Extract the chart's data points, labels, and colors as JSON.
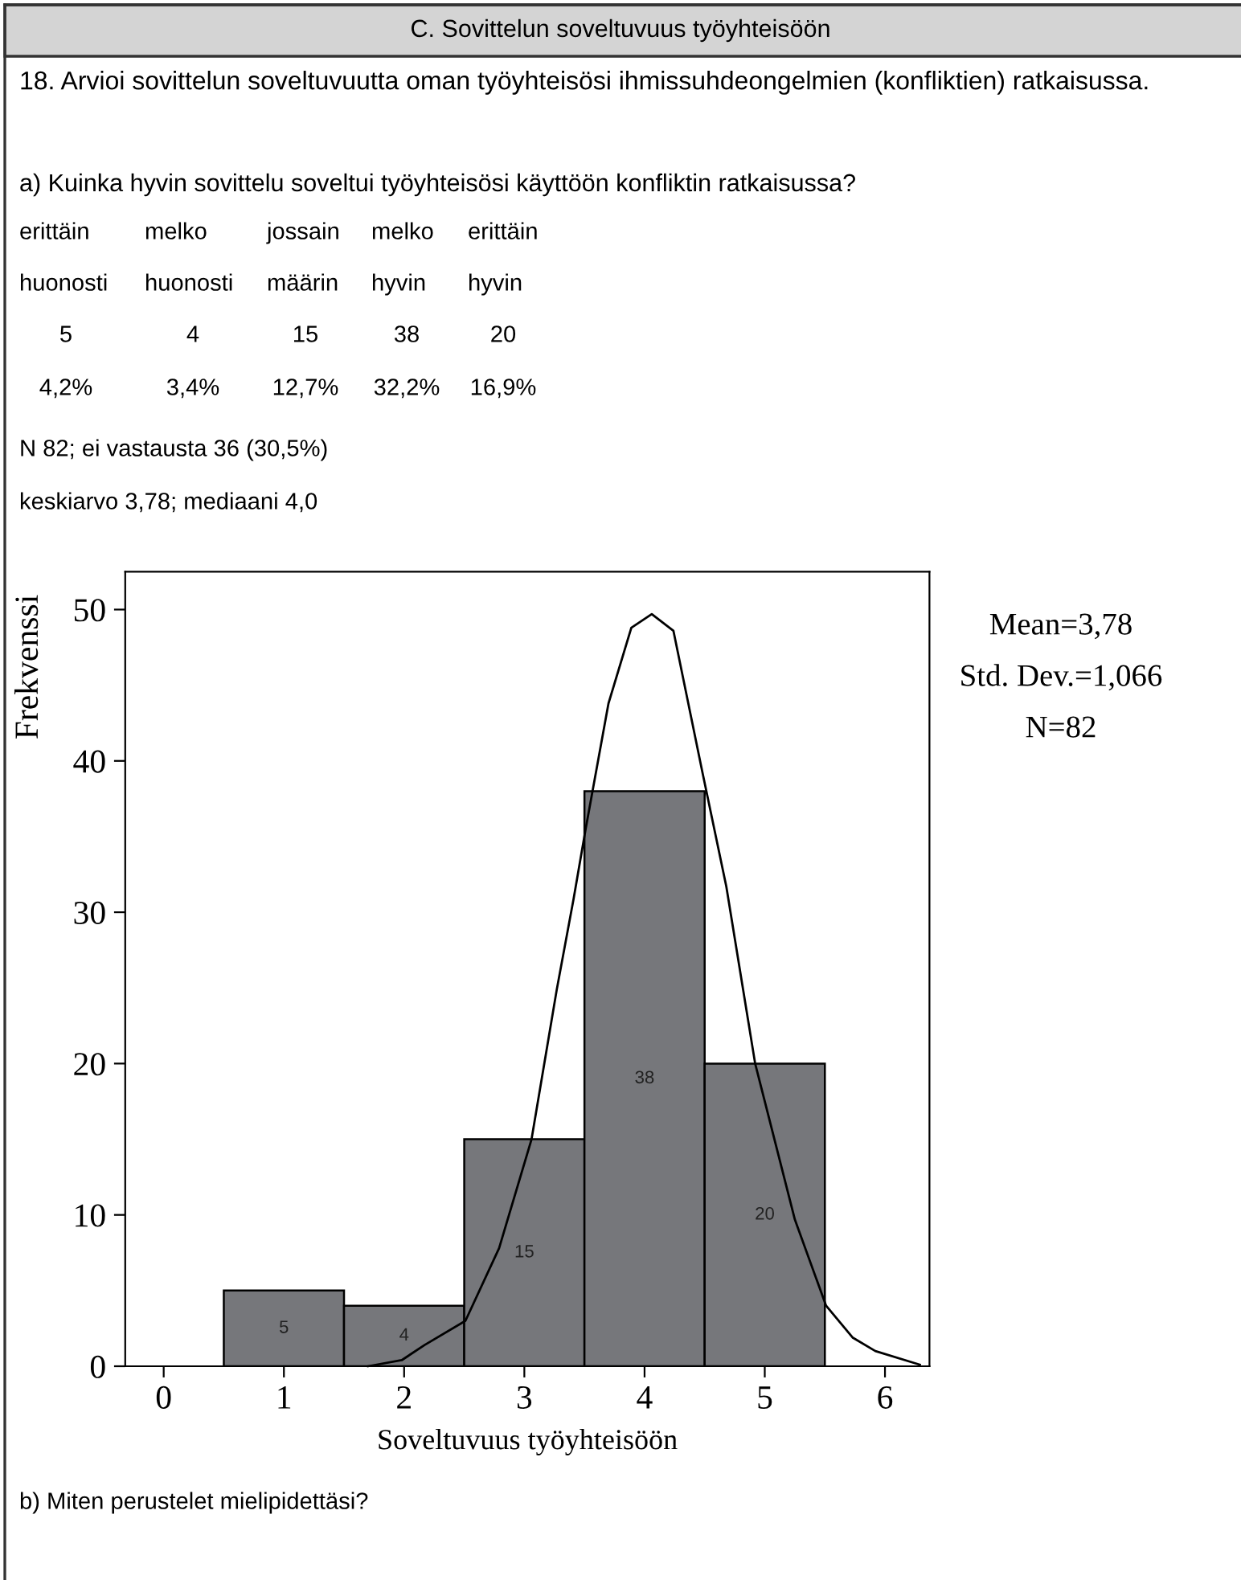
{
  "chart_data": {
    "type": "histogram",
    "title": "C. Sovittelun soveltuvuus työyhteisöön",
    "subtitle": "18. Arvioi sovittelun soveltuvuutta oman työyhteisösi ihmissuhdeongelmien (konfliktien) ratkaisussa.",
    "xlabel": "Soveltuvuus työyhteisöön",
    "ylabel": "Frekvenssi",
    "annotations": [
      "a) Kuinka hyvin sovittelu soveltui työyhteisösi käyttöön konfliktin ratkaisussa?",
      "erittäin",
      "melko",
      "jossain",
      "melko",
      "erittäin",
      "huonosti",
      "huonosti",
      "määrin",
      "hyvin",
      "hyvin",
      "5",
      "4",
      "15",
      "38",
      "20",
      "4,2%",
      "3,4%",
      "12,7%",
      "32,2%",
      "16,9%",
      "N 82; ei vastausta 36 (30,5%)",
      "keskiarvo 3,78; mediaani 4,0",
      "Mean=3,78",
      "Std. Dev.=1,066",
      "N=82",
      "b) Miten perustelet mielipidettäsi?"
    ],
    "bins": [
      0.5,
      1.5,
      2.5,
      3.5,
      4.5,
      5.5
    ],
    "series": [
      {
        "color": "#76777b",
        "values": [
          5,
          4,
          15,
          38,
          20
        ],
        "value_labels": [
          "5",
          "4",
          "15",
          "38",
          "20"
        ]
      },
      {
        "type": "line",
        "color": "#000000",
        "x": [
          1.7,
          1.98,
          2.17,
          2.51,
          2.79,
          3.06,
          3.27,
          3.41,
          3.51,
          3.7,
          3.89,
          4.06,
          4.24,
          4.48,
          4.68,
          4.92,
          5.25,
          5.51,
          5.73,
          5.92,
          6.29
        ],
        "values": [
          0,
          0.4,
          1.4,
          3.0,
          7.8,
          15.0,
          24.9,
          30.9,
          35.5,
          43.8,
          48.8,
          49.7,
          48.6,
          39.3,
          31.7,
          20.0,
          9.7,
          4.0,
          1.9,
          1.0,
          0.1
        ]
      }
    ],
    "xlim": [
      -0.32,
      6.37
    ],
    "ylim": [
      0,
      52.5
    ],
    "xticks": [
      0,
      1,
      2,
      3,
      4,
      5,
      6
    ],
    "yticks": [
      0,
      10,
      20,
      30,
      40,
      50
    ],
    "grid": false,
    "legend": false,
    "line_style": "solid",
    "marker": "none"
  }
}
